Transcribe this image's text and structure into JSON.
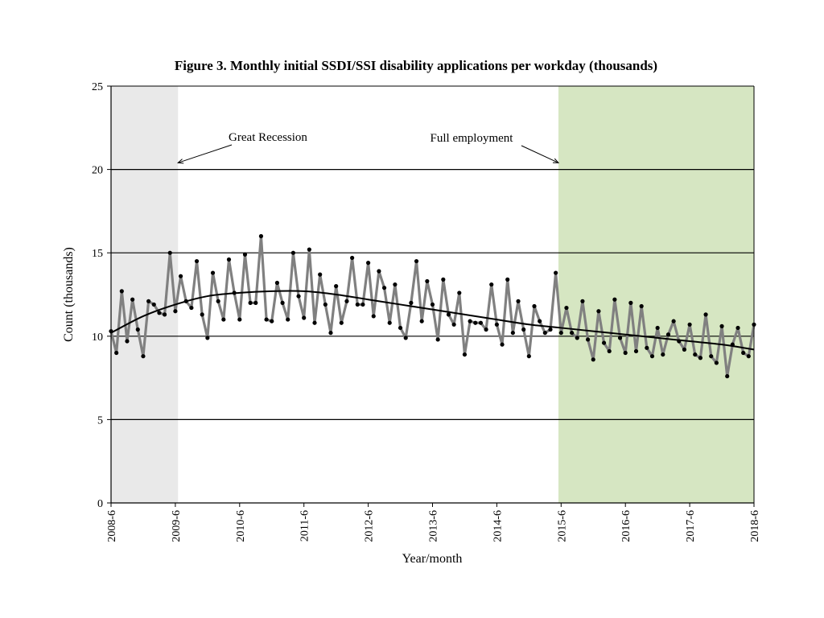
{
  "chart_data": {
    "type": "line",
    "title": "Figure 3. Monthly initial SSDI/SSI disability applications per workday  (thousands)",
    "xlabel": "Year/month",
    "ylabel": "Count (thousands)",
    "ylim": [
      0,
      25
    ],
    "yticks": [
      "0",
      "5",
      "10",
      "15",
      "20",
      "25"
    ],
    "grid": true,
    "x_tick_labels": [
      "2008-6",
      "2009-6",
      "2010-6",
      "2011-6",
      "2012-6",
      "2013-6",
      "2014-6",
      "2015-6",
      "2016-6",
      "2017-6",
      "2018-6"
    ],
    "shaded_regions": [
      {
        "name": "Great Recession",
        "start_month": 0,
        "end_month": 12.5,
        "color": "#e9e9e9"
      },
      {
        "name": "Full employment",
        "start_month": 83.5,
        "end_month": 120,
        "color": "#d6e6c2"
      }
    ],
    "annotations": [
      {
        "text": "Great Recession",
        "points_to_month": 12.5,
        "at_value": 20.4
      },
      {
        "text": "Full employment",
        "points_to_month": 83.5,
        "at_value": 20.4
      }
    ],
    "series": [
      {
        "name": "Monthly applications per workday",
        "color": "#808080",
        "marker_color": "#000000",
        "values": [
          10.3,
          9.0,
          12.7,
          9.7,
          12.2,
          10.4,
          8.8,
          12.1,
          11.9,
          11.4,
          11.3,
          15.0,
          11.5,
          13.6,
          12.1,
          11.7,
          14.5,
          11.3,
          9.9,
          13.8,
          12.1,
          11.0,
          14.6,
          12.6,
          11.0,
          14.9,
          12.0,
          12.0,
          16.0,
          11.0,
          10.9,
          13.2,
          12.0,
          11.0,
          15.0,
          12.4,
          11.1,
          15.2,
          10.8,
          13.7,
          11.9,
          10.2,
          13.0,
          10.8,
          12.1,
          14.7,
          11.9,
          11.9,
          14.4,
          11.2,
          13.9,
          12.9,
          10.8,
          13.1,
          10.5,
          9.9,
          12.0,
          14.5,
          10.9,
          13.3,
          11.9,
          9.8,
          13.4,
          11.3,
          10.7,
          12.6,
          8.9,
          10.9,
          10.8,
          10.8,
          10.4,
          13.1,
          10.7,
          9.5,
          13.4,
          10.2,
          12.1,
          10.4,
          8.8,
          11.8,
          10.9,
          10.2,
          10.4,
          13.8,
          10.2,
          11.7,
          10.2,
          9.9,
          12.1,
          9.8,
          8.6,
          11.5,
          9.6,
          9.1,
          12.2,
          9.9,
          9.0,
          12.0,
          9.1,
          11.8,
          9.3,
          8.8,
          10.5,
          8.9,
          10.1,
          10.9,
          9.7,
          9.2,
          10.7,
          8.9,
          8.7,
          11.3,
          8.8,
          8.4,
          10.6,
          7.6,
          9.5,
          10.5,
          9.0,
          8.8,
          10.7
        ]
      },
      {
        "name": "Trend",
        "color": "#000000",
        "type": "smooth",
        "x_months": [
          0,
          6,
          12,
          18,
          24,
          30,
          36,
          42,
          48,
          54,
          60,
          66,
          72,
          78,
          84,
          90,
          96,
          102,
          108,
          114,
          120
        ],
        "values": [
          10.2,
          11.2,
          11.9,
          12.4,
          12.6,
          12.7,
          12.7,
          12.5,
          12.2,
          11.9,
          11.6,
          11.3,
          11.0,
          10.7,
          10.5,
          10.3,
          10.1,
          9.9,
          9.7,
          9.5,
          9.2
        ]
      }
    ]
  }
}
